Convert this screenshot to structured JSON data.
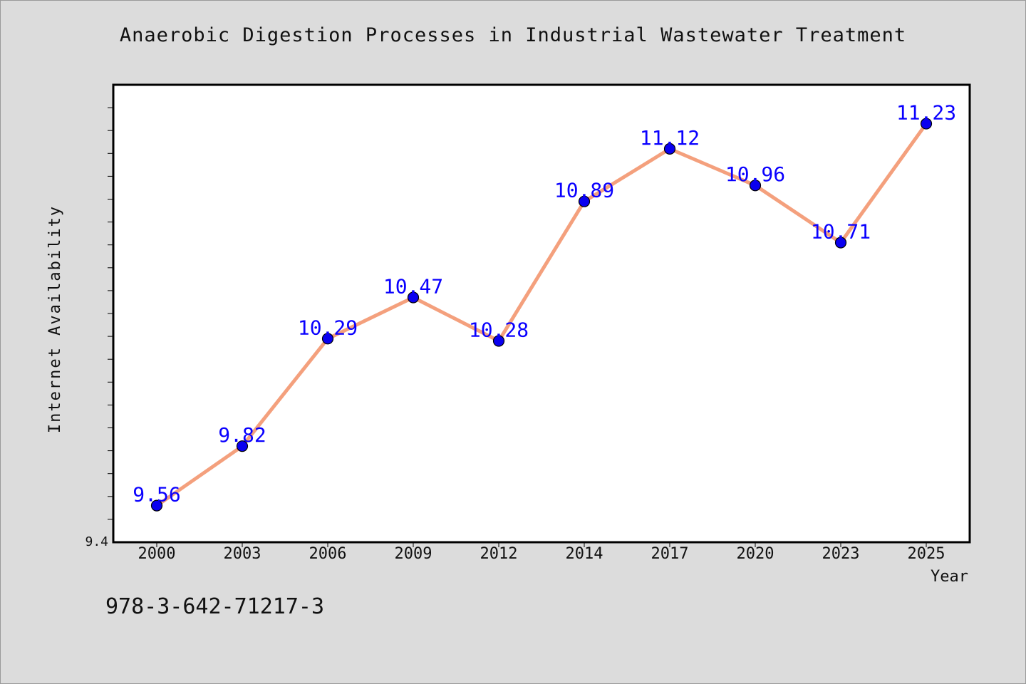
{
  "chart_data": {
    "type": "line",
    "title": "Anaerobic Digestion Processes in Industrial Wastewater Treatment",
    "xlabel": "Year",
    "ylabel": "Internet Availability",
    "categories": [
      "2000",
      "2003",
      "2006",
      "2009",
      "2012",
      "2014",
      "2017",
      "2020",
      "2023",
      "2025"
    ],
    "values": [
      9.56,
      9.82,
      10.29,
      10.47,
      10.28,
      10.89,
      11.12,
      10.96,
      10.71,
      11.23
    ],
    "data_labels": [
      "9.56",
      "9.82",
      "10.29",
      "10.47",
      "10.28",
      "10.89",
      "11.12",
      "10.96",
      "10.71",
      "11.23"
    ],
    "y_tick_label": "9.4",
    "ylim": [
      9.4,
      11.4
    ],
    "grid": false,
    "legend": "none",
    "line_color": "#f4a07d",
    "marker_color": "#0a00f0",
    "label_color": "#0a00ff"
  },
  "footnote": "978-3-642-71217-3"
}
